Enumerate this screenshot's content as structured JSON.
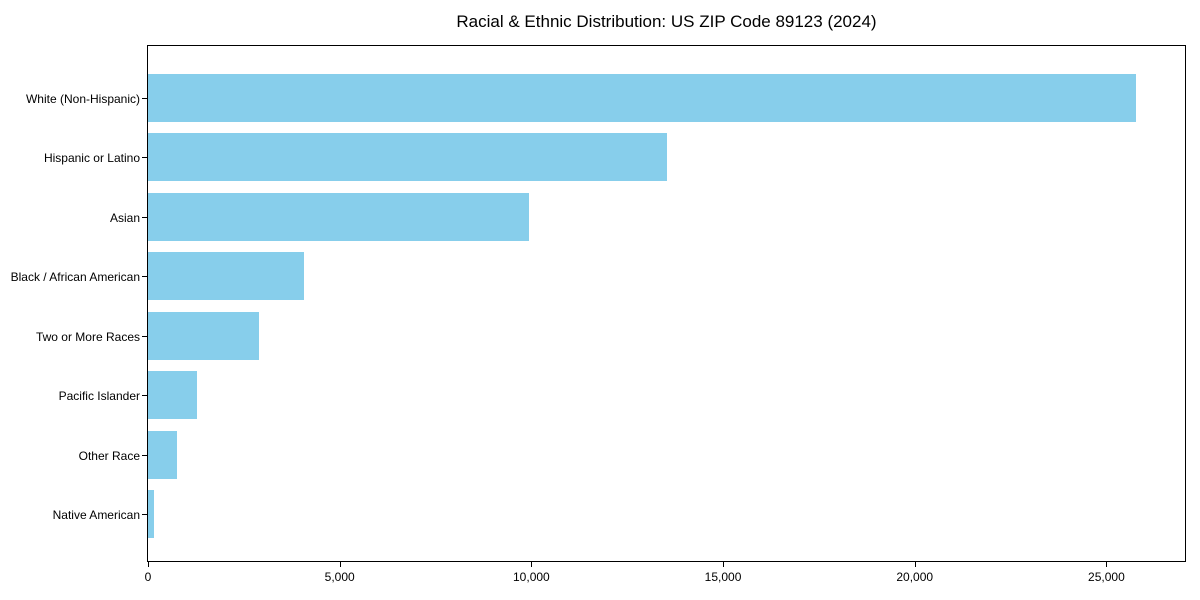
{
  "chart_data": {
    "type": "bar",
    "orientation": "horizontal",
    "title": "Racial & Ethnic Distribution: US ZIP Code 89123 (2024)",
    "categories": [
      "White (Non-Hispanic)",
      "Hispanic or Latino",
      "Asian",
      "Black / African American",
      "Two or More Races",
      "Pacific Islander",
      "Other Race",
      "Native American"
    ],
    "values": [
      25760,
      13550,
      9930,
      4070,
      2890,
      1280,
      760,
      150
    ],
    "xlabel": "",
    "ylabel": "",
    "xlim": [
      0,
      27050
    ],
    "xticks": [
      0,
      5000,
      10000,
      15000,
      20000,
      25000
    ],
    "xtick_labels": [
      "0",
      "5,000",
      "10,000",
      "15,000",
      "20,000",
      "25,000"
    ],
    "grid": false,
    "legend": "none",
    "bar_color": "#87CEEB",
    "axis_color": "#000000",
    "text_color": "#000000",
    "background_color": "#ffffff"
  }
}
